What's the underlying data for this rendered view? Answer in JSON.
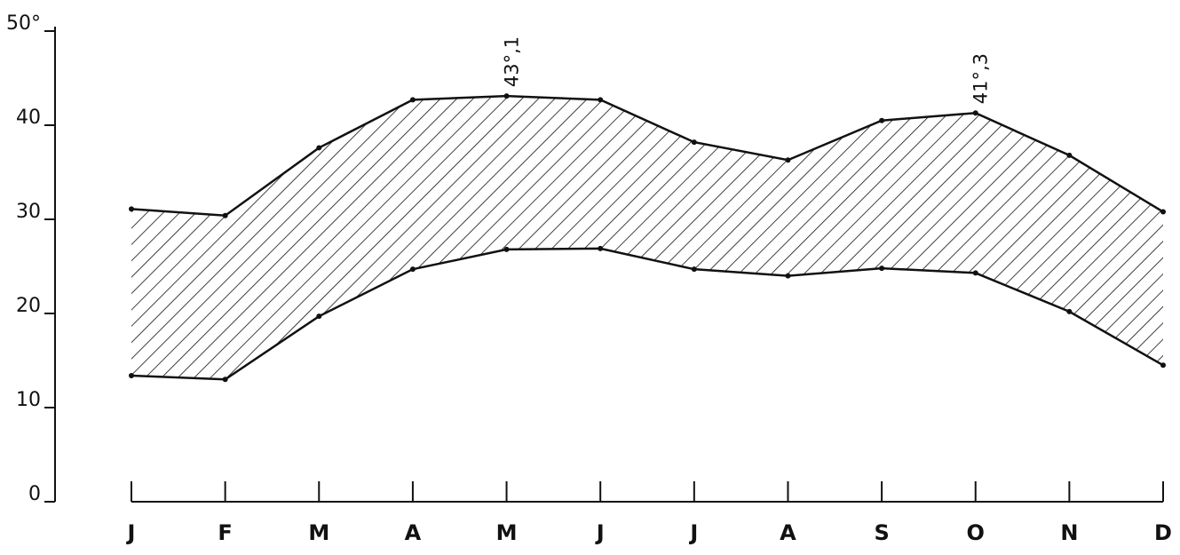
{
  "chart_data": {
    "type": "range-area",
    "categories": [
      "J",
      "F",
      "M",
      "A",
      "M",
      "J",
      "J",
      "A",
      "S",
      "O",
      "N",
      "D"
    ],
    "series": [
      {
        "color": "#111111",
        "values": [
          31.1,
          30.4,
          37.6,
          42.7,
          43.1,
          42.7,
          38.2,
          36.3,
          40.5,
          41.3,
          36.8,
          30.8
        ],
        "value_labels": [
          null,
          null,
          null,
          null,
          "43°,1",
          null,
          null,
          null,
          null,
          "41°,3",
          null,
          null
        ]
      },
      {
        "color": "#111111",
        "values": [
          13.4,
          13.0,
          19.7,
          24.7,
          26.8,
          26.9,
          24.7,
          24.0,
          24.8,
          24.3,
          20.2,
          14.5
        ]
      }
    ],
    "ylim": [
      0,
      50
    ],
    "yticks": [
      0,
      10,
      20,
      30,
      40,
      {
        "value": 50,
        "label": "50°"
      }
    ],
    "hatch": true
  }
}
